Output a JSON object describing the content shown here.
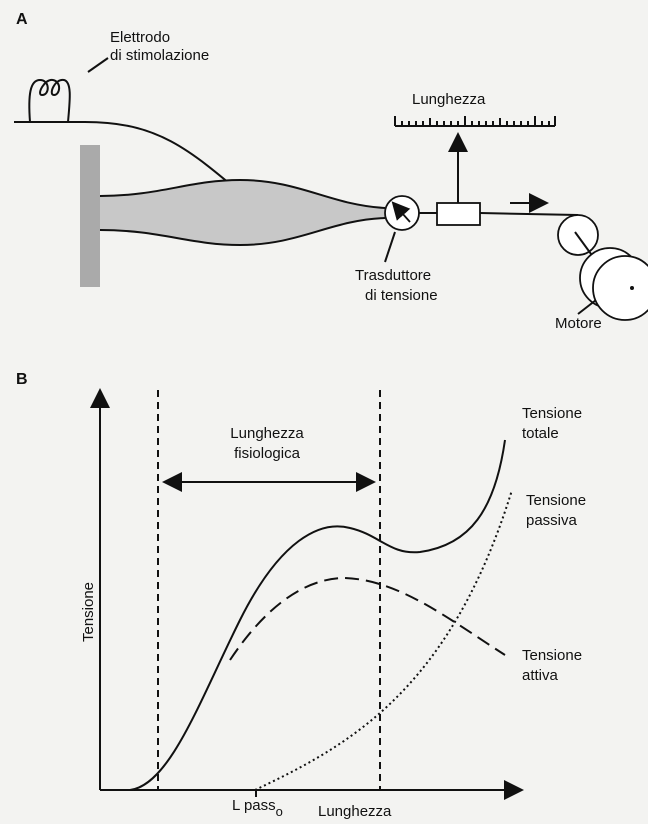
{
  "panel_a": {
    "label": "A",
    "electrode_label": [
      "Elettrodo",
      "di stimolazione"
    ],
    "ruler_label": "Lunghezza",
    "transducer_label": [
      "Trasduttore",
      "di tensione"
    ],
    "motor_label": "Motore"
  },
  "panel_b": {
    "label": "B",
    "y_axis_label": "Tensione",
    "x_axis_label": "Lunghezza",
    "range_label": [
      "Lunghezza",
      "fisiologica"
    ],
    "x_marker": {
      "text": "L pass",
      "subscript": "o"
    },
    "curves": [
      {
        "name": [
          "Tensione",
          "totale"
        ]
      },
      {
        "name": [
          "Tensione",
          "passiva"
        ]
      },
      {
        "name": [
          "Tensione",
          "attiva"
        ]
      }
    ]
  }
}
